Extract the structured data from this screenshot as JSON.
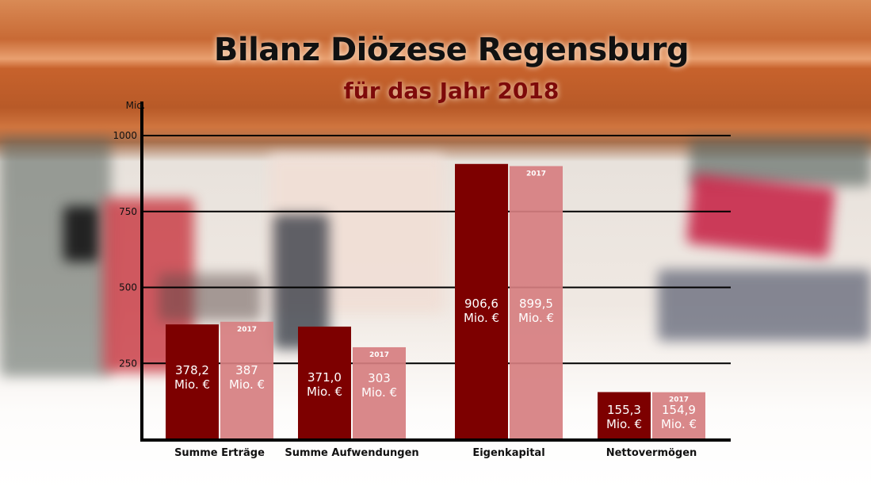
{
  "colors": {
    "bar_2018": "#7d0000",
    "bar_2017": "#d67e80",
    "axis": "#000000",
    "title": "#111111",
    "subtitle": "#7e0a0a"
  },
  "chart_data": {
    "type": "bar",
    "title": "Bilanz Diözese Regensburg",
    "subtitle": "für das Jahr 2018",
    "ylabel": "Mio.",
    "xlabel": "",
    "ylim": [
      0,
      1000
    ],
    "yticks": [
      250,
      500,
      750,
      1000
    ],
    "ytick_labels": [
      "250",
      "500",
      "750",
      "1000"
    ],
    "grid": true,
    "categories": [
      "Summe Erträge",
      "Summe Aufwendungen",
      "Eigenkapital",
      "Nettovermögen"
    ],
    "series": [
      {
        "name": "2018",
        "values": [
          378.2,
          371.0,
          906.6,
          155.3
        ],
        "labels": [
          "378,2",
          "371,0",
          "906,6",
          "155,3"
        ],
        "unit_label": "Mio. €"
      },
      {
        "name": "2017",
        "values": [
          387,
          303,
          899.5,
          154.9
        ],
        "labels": [
          "387",
          "303",
          "899,5",
          "154,9"
        ],
        "unit_label": "Mio. €",
        "bar_tag": "2017"
      }
    ]
  }
}
